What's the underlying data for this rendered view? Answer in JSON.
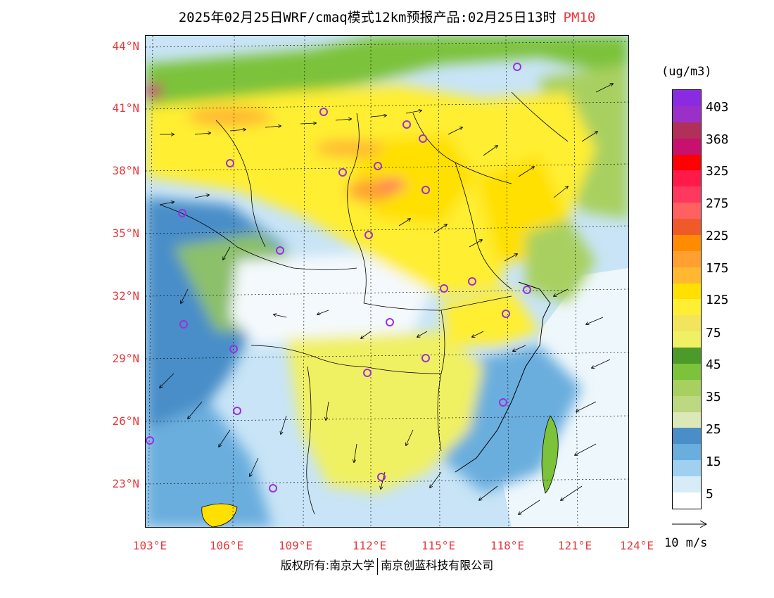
{
  "header": {
    "title": "2025年02月25日WRF/cmaq模式12km预报产品:02月25日13时",
    "species": "PM10"
  },
  "axes": {
    "lat_labels": [
      "44°N",
      "41°N",
      "38°N",
      "35°N",
      "32°N",
      "29°N",
      "26°N",
      "23°N"
    ],
    "lon_labels": [
      "103°E",
      "106°E",
      "109°E",
      "112°E",
      "115°E",
      "118°E",
      "121°E",
      "124°E"
    ]
  },
  "colorbar": {
    "unit": "(ug/m3)",
    "ticks": [
      "403",
      "368",
      "325",
      "275",
      "225",
      "175",
      "125",
      "75",
      "45",
      "35",
      "25",
      "15",
      "5"
    ],
    "colors": [
      "#8a2be2",
      "#9b30c8",
      "#b0305a",
      "#c8106e",
      "#ff0000",
      "#ff1a4a",
      "#ff3860",
      "#ff6060",
      "#ee5a28",
      "#ff8c00",
      "#ffa030",
      "#ffb830",
      "#ffe000",
      "#ffee33",
      "#f2e45c",
      "#f0f064",
      "#4c9a2a",
      "#7cc23a",
      "#a8d060",
      "#bcd880",
      "#dce8b8",
      "#4a8ec8",
      "#6aaede",
      "#a0d0f0",
      "#d8ecf8",
      "#ffffff"
    ]
  },
  "wind": {
    "reference_label": "10 m/s"
  },
  "footer": {
    "copyright_left": "版权所有:南京大学",
    "copyright_right": "南京创蓝科技有限公司"
  }
}
